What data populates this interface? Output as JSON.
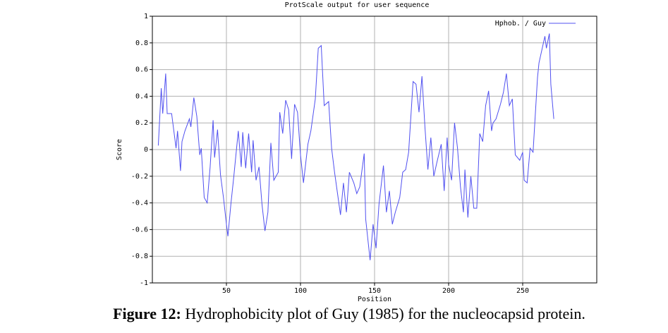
{
  "chart_data": {
    "type": "line",
    "title": "ProtScale output for user sequence",
    "x_label": "Position",
    "y_label": "Score",
    "xlim": [
      0,
      300
    ],
    "ylim": [
      -1,
      1
    ],
    "xticks": [
      50,
      100,
      150,
      200,
      250
    ],
    "yticks": [
      1,
      0.8,
      0.6,
      0.4,
      0.2,
      0,
      -0.2,
      -0.4,
      -0.6,
      -0.8,
      -1
    ],
    "grid": true,
    "legend": "upper right",
    "x": [
      4,
      6,
      7,
      9,
      10,
      13,
      16,
      17,
      19,
      20,
      22,
      25,
      26,
      28,
      30,
      32,
      33,
      35,
      37,
      39,
      41,
      42,
      44,
      46,
      48,
      50,
      51,
      53,
      55,
      58,
      60,
      61,
      63,
      65,
      67,
      68,
      70,
      72,
      74,
      76,
      78,
      80,
      82,
      85,
      86,
      88,
      90,
      92,
      94,
      96,
      98,
      100,
      102,
      105,
      107,
      110,
      112,
      114,
      116,
      119,
      121,
      123,
      125,
      127,
      129,
      131,
      133,
      136,
      138,
      140,
      143,
      144,
      147,
      149,
      151,
      153,
      156,
      158,
      160,
      162,
      164,
      167,
      169,
      171,
      173,
      176,
      178,
      180,
      182,
      184,
      186,
      188,
      190,
      192,
      195,
      197,
      199,
      200,
      202,
      204,
      206,
      208,
      210,
      211,
      213,
      215,
      217,
      219,
      221,
      223,
      225,
      227,
      229,
      230,
      232,
      235,
      237,
      239,
      241,
      243,
      245,
      248,
      250,
      251,
      253,
      255,
      257,
      260,
      261,
      263,
      265,
      266,
      268,
      269,
      271
    ],
    "series": [
      {
        "name": "Hphob. / Guy",
        "color": "#5050f0",
        "values": [
          0.03,
          0.46,
          0.27,
          0.57,
          0.27,
          0.27,
          0.01,
          0.14,
          -0.16,
          0.06,
          0.14,
          0.23,
          0.17,
          0.39,
          0.25,
          -0.04,
          0.01,
          -0.36,
          -0.4,
          -0.13,
          0.22,
          -0.06,
          0.15,
          -0.19,
          -0.36,
          -0.56,
          -0.65,
          -0.41,
          -0.2,
          0.14,
          -0.13,
          0.13,
          -0.14,
          0.12,
          -0.17,
          0.07,
          -0.23,
          -0.13,
          -0.41,
          -0.61,
          -0.47,
          0.05,
          -0.23,
          -0.17,
          0.28,
          0.12,
          0.37,
          0.3,
          -0.07,
          0.34,
          0.28,
          -0.04,
          -0.25,
          0.04,
          0.14,
          0.38,
          0.76,
          0.78,
          0.33,
          0.36,
          0.01,
          -0.17,
          -0.33,
          -0.49,
          -0.25,
          -0.47,
          -0.17,
          -0.25,
          -0.33,
          -0.28,
          -0.03,
          -0.52,
          -0.83,
          -0.56,
          -0.74,
          -0.41,
          -0.12,
          -0.47,
          -0.31,
          -0.56,
          -0.47,
          -0.36,
          -0.17,
          -0.15,
          -0.02,
          0.51,
          0.49,
          0.28,
          0.55,
          0.17,
          -0.15,
          0.09,
          -0.2,
          -0.1,
          0.04,
          -0.31,
          0.09,
          -0.11,
          -0.23,
          0.2,
          0.01,
          -0.28,
          -0.47,
          -0.15,
          -0.51,
          -0.2,
          -0.44,
          -0.44,
          0.12,
          0.06,
          0.33,
          0.44,
          0.14,
          0.2,
          0.23,
          0.34,
          0.43,
          0.57,
          0.33,
          0.38,
          -0.04,
          -0.08,
          -0.02,
          -0.23,
          -0.25,
          0.01,
          -0.02,
          0.54,
          0.65,
          0.75,
          0.85,
          0.76,
          0.87,
          0.49,
          0.23
        ]
      }
    ]
  },
  "caption": {
    "label": "Figure 12:",
    "text": "Hydrophobicity plot of Guy (1985) for the nucleocapsid protein."
  }
}
